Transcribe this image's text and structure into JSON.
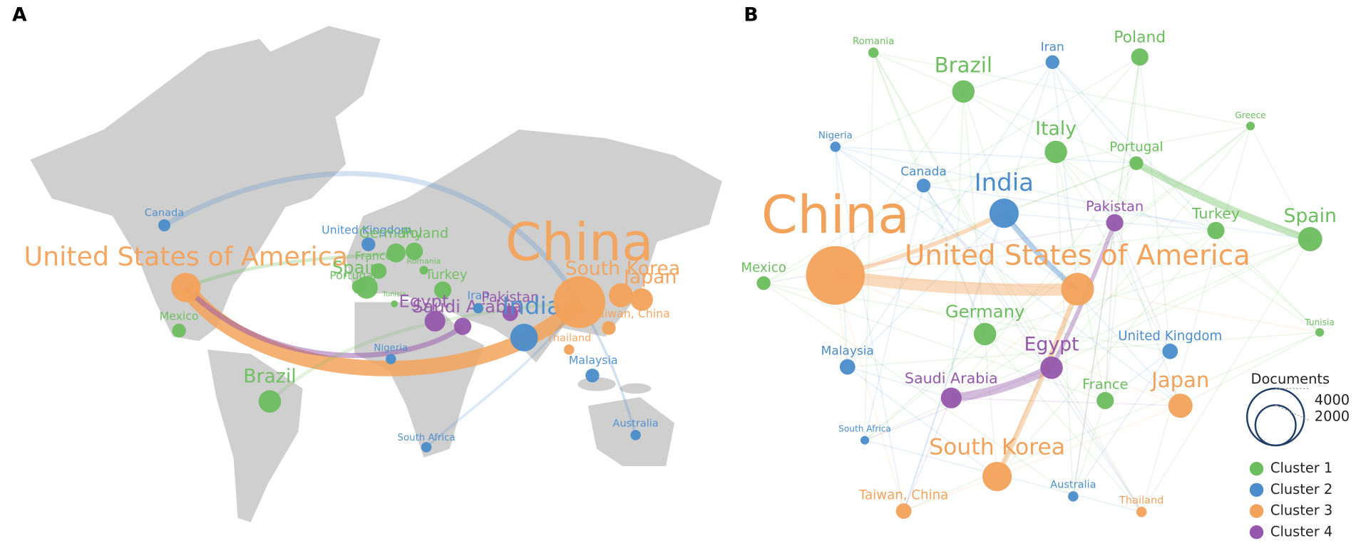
{
  "panels": [
    {
      "label": "A",
      "nodes": [
        {
          "label": "Canada",
          "cluster": 2
        },
        {
          "label": "United Kingdom",
          "cluster": 2
        },
        {
          "label": "Germany",
          "cluster": 1
        },
        {
          "label": "Poland",
          "cluster": 1
        },
        {
          "label": "United States of America",
          "cluster": 3
        },
        {
          "label": "France",
          "cluster": 1
        },
        {
          "label": "Spain",
          "cluster": 1
        },
        {
          "label": "Portugal",
          "cluster": 1
        },
        {
          "label": "Turkey",
          "cluster": 1
        },
        {
          "label": "Romania",
          "cluster": 1
        },
        {
          "label": "Tunisia",
          "cluster": 1
        },
        {
          "label": "Mexico",
          "cluster": 1
        },
        {
          "label": "Brazil",
          "cluster": 1
        },
        {
          "label": "Egypt",
          "cluster": 4
        },
        {
          "label": "Saudi Arabia",
          "cluster": 4
        },
        {
          "label": "Iran",
          "cluster": 2
        },
        {
          "label": "Pakistan",
          "cluster": 4
        },
        {
          "label": "India",
          "cluster": 2
        },
        {
          "label": "China",
          "cluster": 3
        },
        {
          "label": "South Korea",
          "cluster": 3
        },
        {
          "label": "Japan",
          "cluster": 3
        },
        {
          "label": "Taiwan, China",
          "cluster": 3
        },
        {
          "label": "Thailand",
          "cluster": 3
        },
        {
          "label": "Nigeria",
          "cluster": 2
        },
        {
          "label": "Malaysia",
          "cluster": 2
        },
        {
          "label": "South Africa",
          "cluster": 2
        },
        {
          "label": "Australia",
          "cluster": 2
        }
      ]
    },
    {
      "label": "B",
      "nodes": [
        {
          "label": "Romania",
          "cluster": 1
        },
        {
          "label": "Iran",
          "cluster": 2
        },
        {
          "label": "Poland",
          "cluster": 1
        },
        {
          "label": "Brazil",
          "cluster": 1
        },
        {
          "label": "Greece",
          "cluster": 1
        },
        {
          "label": "Nigeria",
          "cluster": 2
        },
        {
          "label": "Italy",
          "cluster": 1
        },
        {
          "label": "Portugal",
          "cluster": 1
        },
        {
          "label": "Canada",
          "cluster": 2
        },
        {
          "label": "India",
          "cluster": 2
        },
        {
          "label": "Pakistan",
          "cluster": 4
        },
        {
          "label": "Turkey",
          "cluster": 1
        },
        {
          "label": "Spain",
          "cluster": 1
        },
        {
          "label": "China",
          "cluster": 3
        },
        {
          "label": "Mexico",
          "cluster": 1
        },
        {
          "label": "United States of America",
          "cluster": 3
        },
        {
          "label": "Germany",
          "cluster": 1
        },
        {
          "label": "Tunisia",
          "cluster": 1
        },
        {
          "label": "United Kingdom",
          "cluster": 2
        },
        {
          "label": "Malaysia",
          "cluster": 2
        },
        {
          "label": "Egypt",
          "cluster": 4
        },
        {
          "label": "Saudi Arabia",
          "cluster": 4
        },
        {
          "label": "France",
          "cluster": 1
        },
        {
          "label": "Japan",
          "cluster": 3
        },
        {
          "label": "South Africa",
          "cluster": 2
        },
        {
          "label": "South Korea",
          "cluster": 3
        },
        {
          "label": "Australia",
          "cluster": 2
        },
        {
          "label": "Taiwan, China",
          "cluster": 3
        },
        {
          "label": "Thailand",
          "cluster": 3
        }
      ]
    }
  ],
  "legend": {
    "title": "Documents",
    "sizes": [
      4000,
      2000
    ],
    "clusters": [
      {
        "name": "Cluster 1",
        "color": "#6cbd5e"
      },
      {
        "name": "Cluster 2",
        "color": "#4b8ccb"
      },
      {
        "name": "Cluster 3",
        "color": "#f3a25b"
      },
      {
        "name": "Cluster 4",
        "color": "#9457ab"
      }
    ]
  }
}
